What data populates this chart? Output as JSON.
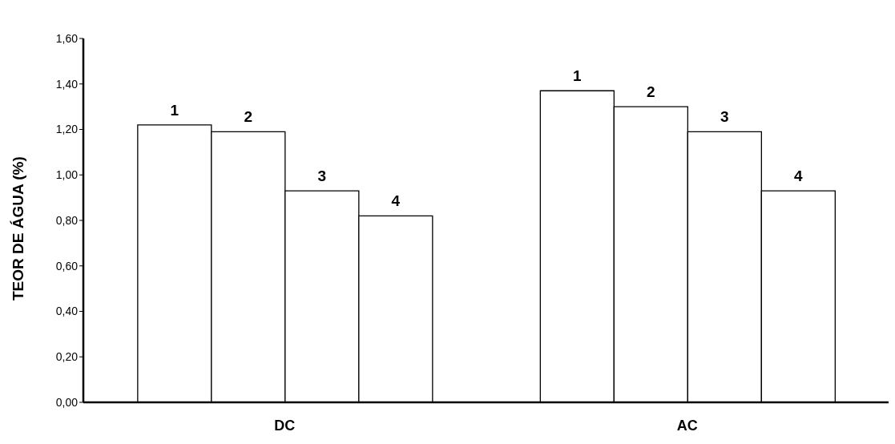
{
  "chart_data": {
    "type": "bar",
    "ylabel": "TEOR DE ÁGUA (%)",
    "categories": [
      "DC",
      "AC"
    ],
    "series": [
      {
        "name": "1",
        "color": "#ffffff",
        "values": [
          1.22,
          1.37
        ]
      },
      {
        "name": "2",
        "color": "#ffffff",
        "values": [
          1.19,
          1.3
        ]
      },
      {
        "name": "3",
        "color": "#ffffff",
        "values": [
          0.93,
          1.19
        ]
      },
      {
        "name": "4",
        "color": "#ffffff",
        "values": [
          0.82,
          0.93
        ]
      }
    ],
    "ylim": [
      0,
      1.6
    ],
    "yticks": [
      {
        "value": 0,
        "label": "0,00"
      },
      {
        "value": 0.2,
        "label": "0,20"
      },
      {
        "value": 0.4,
        "label": "0,40"
      },
      {
        "value": 0.6,
        "label": "0,60"
      },
      {
        "value": 0.8,
        "label": "0,80"
      },
      {
        "value": 1,
        "label": "1,00"
      },
      {
        "value": 1.2,
        "label": "1,20"
      },
      {
        "value": 1.4,
        "label": "1,40"
      },
      {
        "value": 1.6,
        "label": "1,60"
      }
    ],
    "grid": false,
    "legend": false
  }
}
